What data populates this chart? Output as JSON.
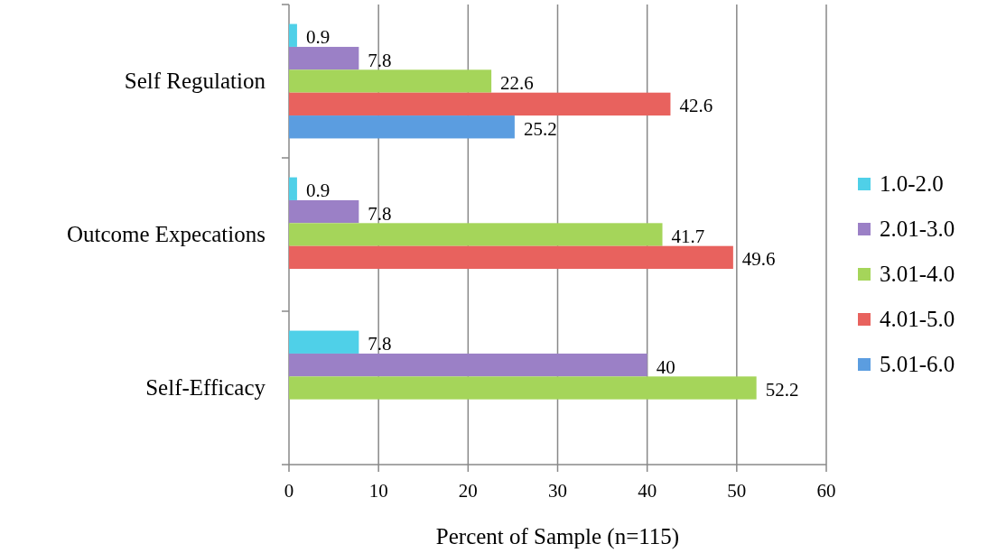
{
  "chart_data": {
    "type": "bar",
    "orientation": "horizontal",
    "xlabel": "Percent of Sample (n=115)",
    "categories": [
      "Self Regulation",
      "Outcome Expecations",
      "Self-Efficacy"
    ],
    "series": [
      {
        "name": "1.0-2.0",
        "color": "#4fd0e8",
        "values": [
          0.9,
          0.9,
          7.8
        ]
      },
      {
        "name": "2.01-3.0",
        "color": "#9b80c6",
        "values": [
          7.8,
          7.8,
          40
        ]
      },
      {
        "name": "3.01-4.0",
        "color": "#a5d55a",
        "values": [
          22.6,
          41.7,
          52.2
        ]
      },
      {
        "name": "4.01-5.0",
        "color": "#e8625e",
        "values": [
          42.6,
          49.6,
          null
        ]
      },
      {
        "name": "5.01-6.0",
        "color": "#5b9de0",
        "values": [
          25.2,
          null,
          null
        ]
      }
    ],
    "xlim": [
      0,
      60
    ],
    "xticks": [
      0,
      10,
      20,
      30,
      40,
      50,
      60
    ],
    "grid": "x",
    "legend": "right",
    "data_labels": true
  }
}
